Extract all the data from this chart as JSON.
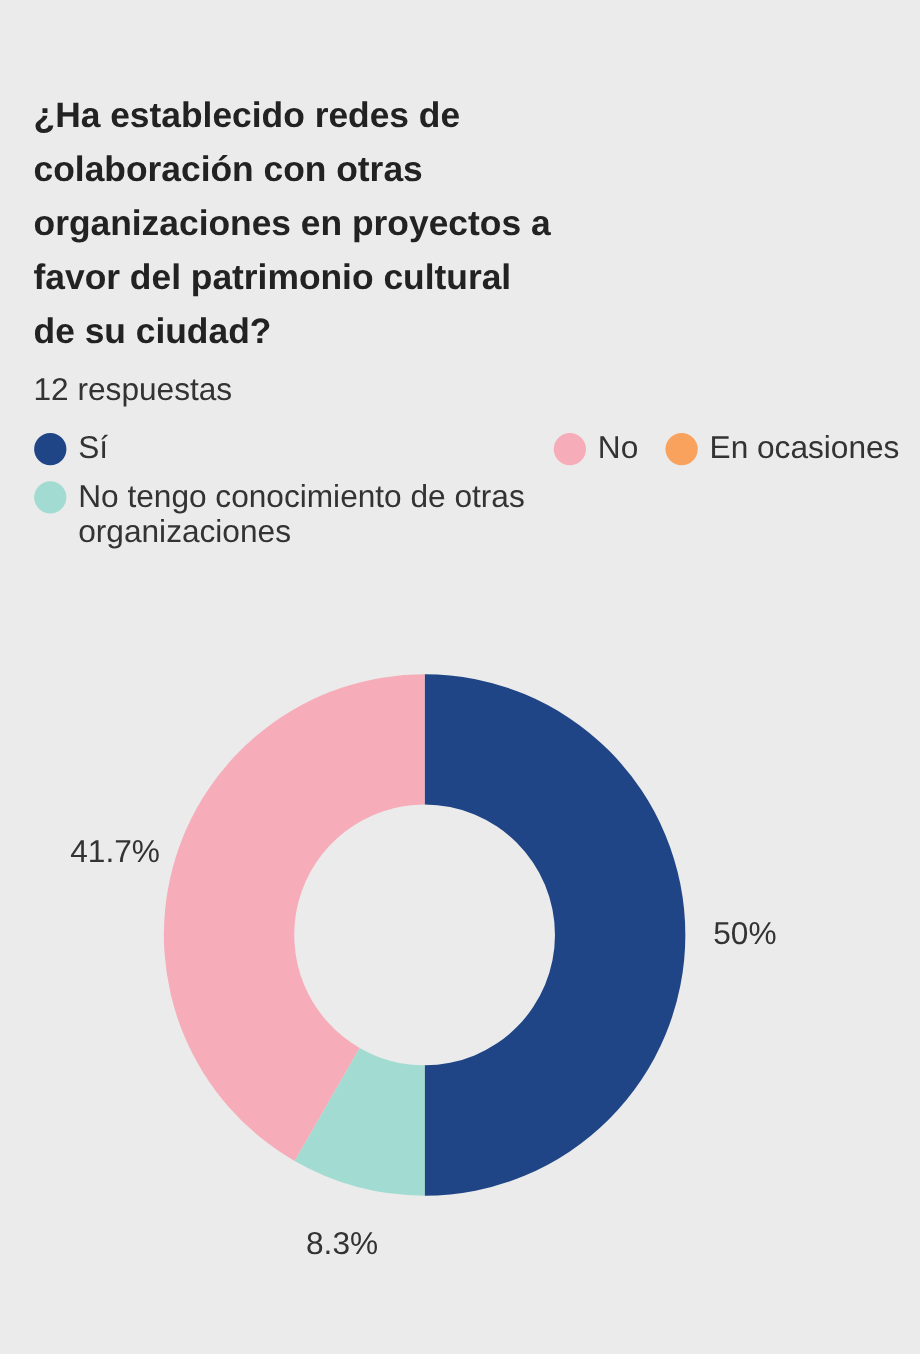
{
  "chart_data": {
    "type": "donut",
    "title": "¿Ha establecido redes de colaboración con otras organizaciones en proyectos a favor del patrimonio cultural de su ciudad?",
    "subtitle": "12 respuestas",
    "categories": [
      "Sí",
      "No",
      "En ocasiones",
      "No tengo conocimiento de otras organizaciones"
    ],
    "values": [
      50,
      41.7,
      0,
      8.3
    ],
    "colors": [
      "#1f4586",
      "#f6adb9",
      "#f9a25e",
      "#a2dbd1"
    ],
    "value_labels": [
      "50%",
      "41.7%",
      null,
      "8.3%"
    ],
    "legend": "top"
  }
}
